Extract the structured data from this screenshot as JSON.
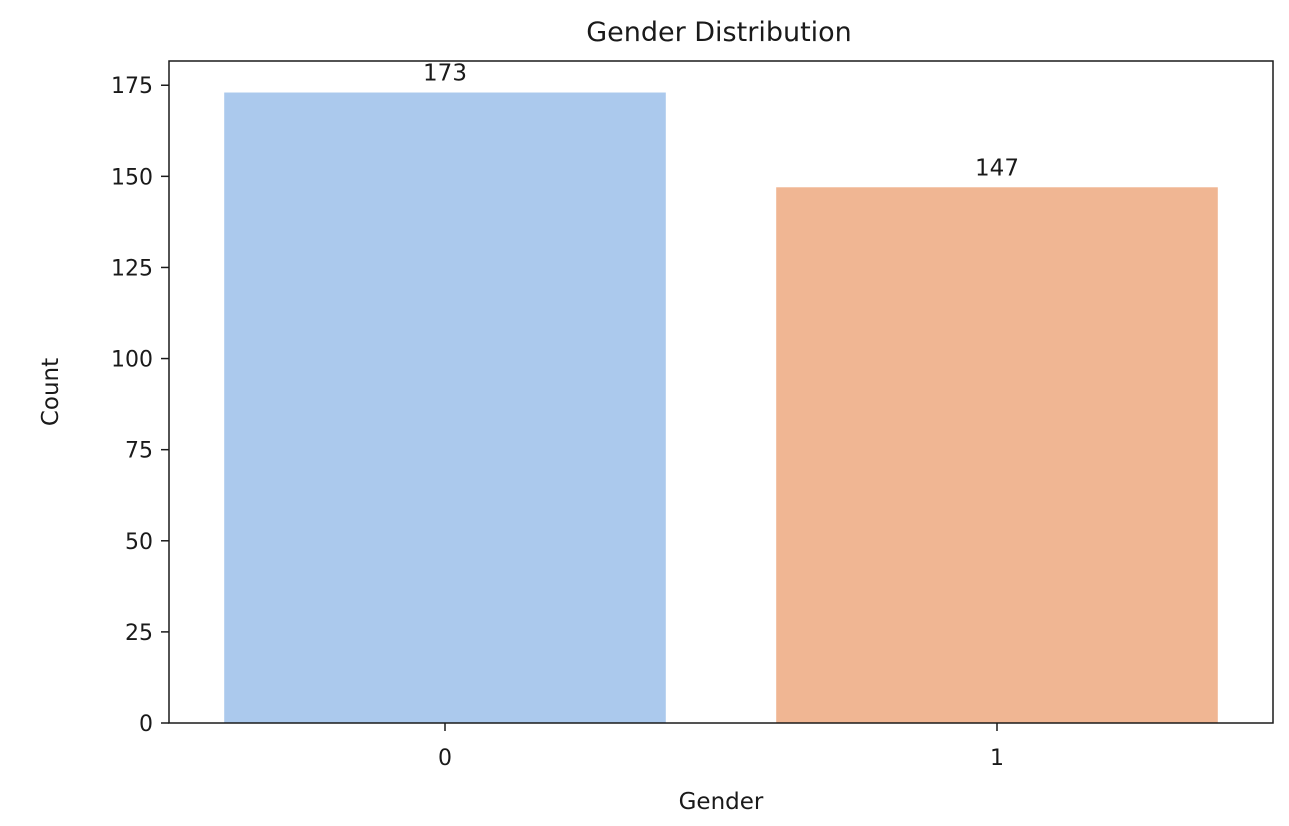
{
  "chart_data": {
    "type": "bar",
    "title": "Gender Distribution",
    "xlabel": "Gender",
    "ylabel": "Count",
    "categories": [
      "0",
      "1"
    ],
    "values": [
      173,
      147
    ],
    "data_labels": [
      "173",
      "147"
    ],
    "colors": [
      "#abc9ed",
      "#f0b693"
    ],
    "ylim": [
      0,
      181.65
    ],
    "yticks": [
      0,
      25,
      50,
      75,
      100,
      125,
      150,
      175
    ],
    "grid": false,
    "legend": "none"
  }
}
